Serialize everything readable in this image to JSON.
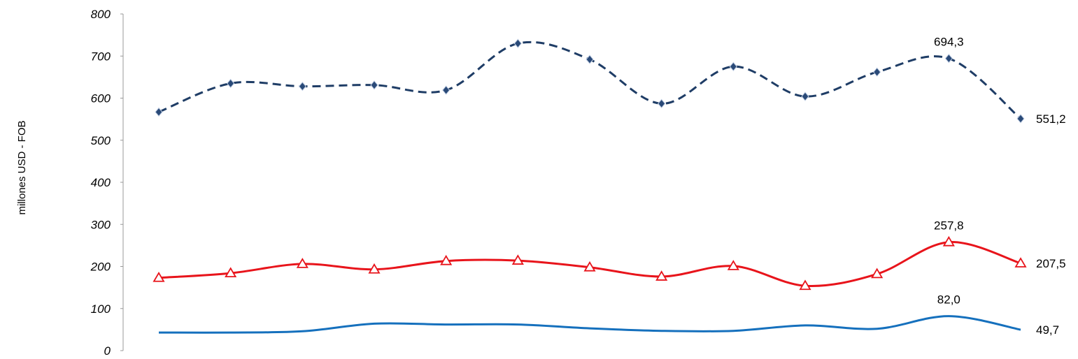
{
  "chart_data": {
    "type": "line",
    "ylabel": "millones USD - FOB",
    "ylim": [
      0,
      800
    ],
    "yticks": [
      0,
      100,
      200,
      300,
      400,
      500,
      600,
      700,
      800
    ],
    "grid": false,
    "x": [
      1,
      2,
      3,
      4,
      5,
      6,
      7,
      8,
      9,
      10,
      11,
      12,
      13
    ],
    "series": [
      {
        "id": "top",
        "color": "#1f3d66",
        "style": "dashed",
        "marker": "diamond",
        "values": [
          567,
          635,
          628,
          631,
          619,
          730,
          692,
          587,
          675,
          604,
          662,
          694.3,
          551.2
        ],
        "labels": {
          "11": "694,3",
          "12": "551,2"
        }
      },
      {
        "id": "mid",
        "color": "#e8141b",
        "style": "solid",
        "marker": "triangle",
        "values": [
          173,
          184,
          206,
          193,
          213,
          214,
          198,
          176,
          201,
          154,
          182,
          257.8,
          207.5
        ],
        "labels": {
          "11": "257,8",
          "12": "207,5"
        }
      },
      {
        "id": "bottom",
        "color": "#1570bd",
        "style": "solid",
        "marker": "none",
        "values": [
          43,
          43,
          46,
          64,
          62,
          62,
          53,
          47,
          47,
          60,
          52,
          82.0,
          49.7
        ],
        "labels": {
          "11": "82,0",
          "12": "49,7"
        }
      }
    ]
  }
}
